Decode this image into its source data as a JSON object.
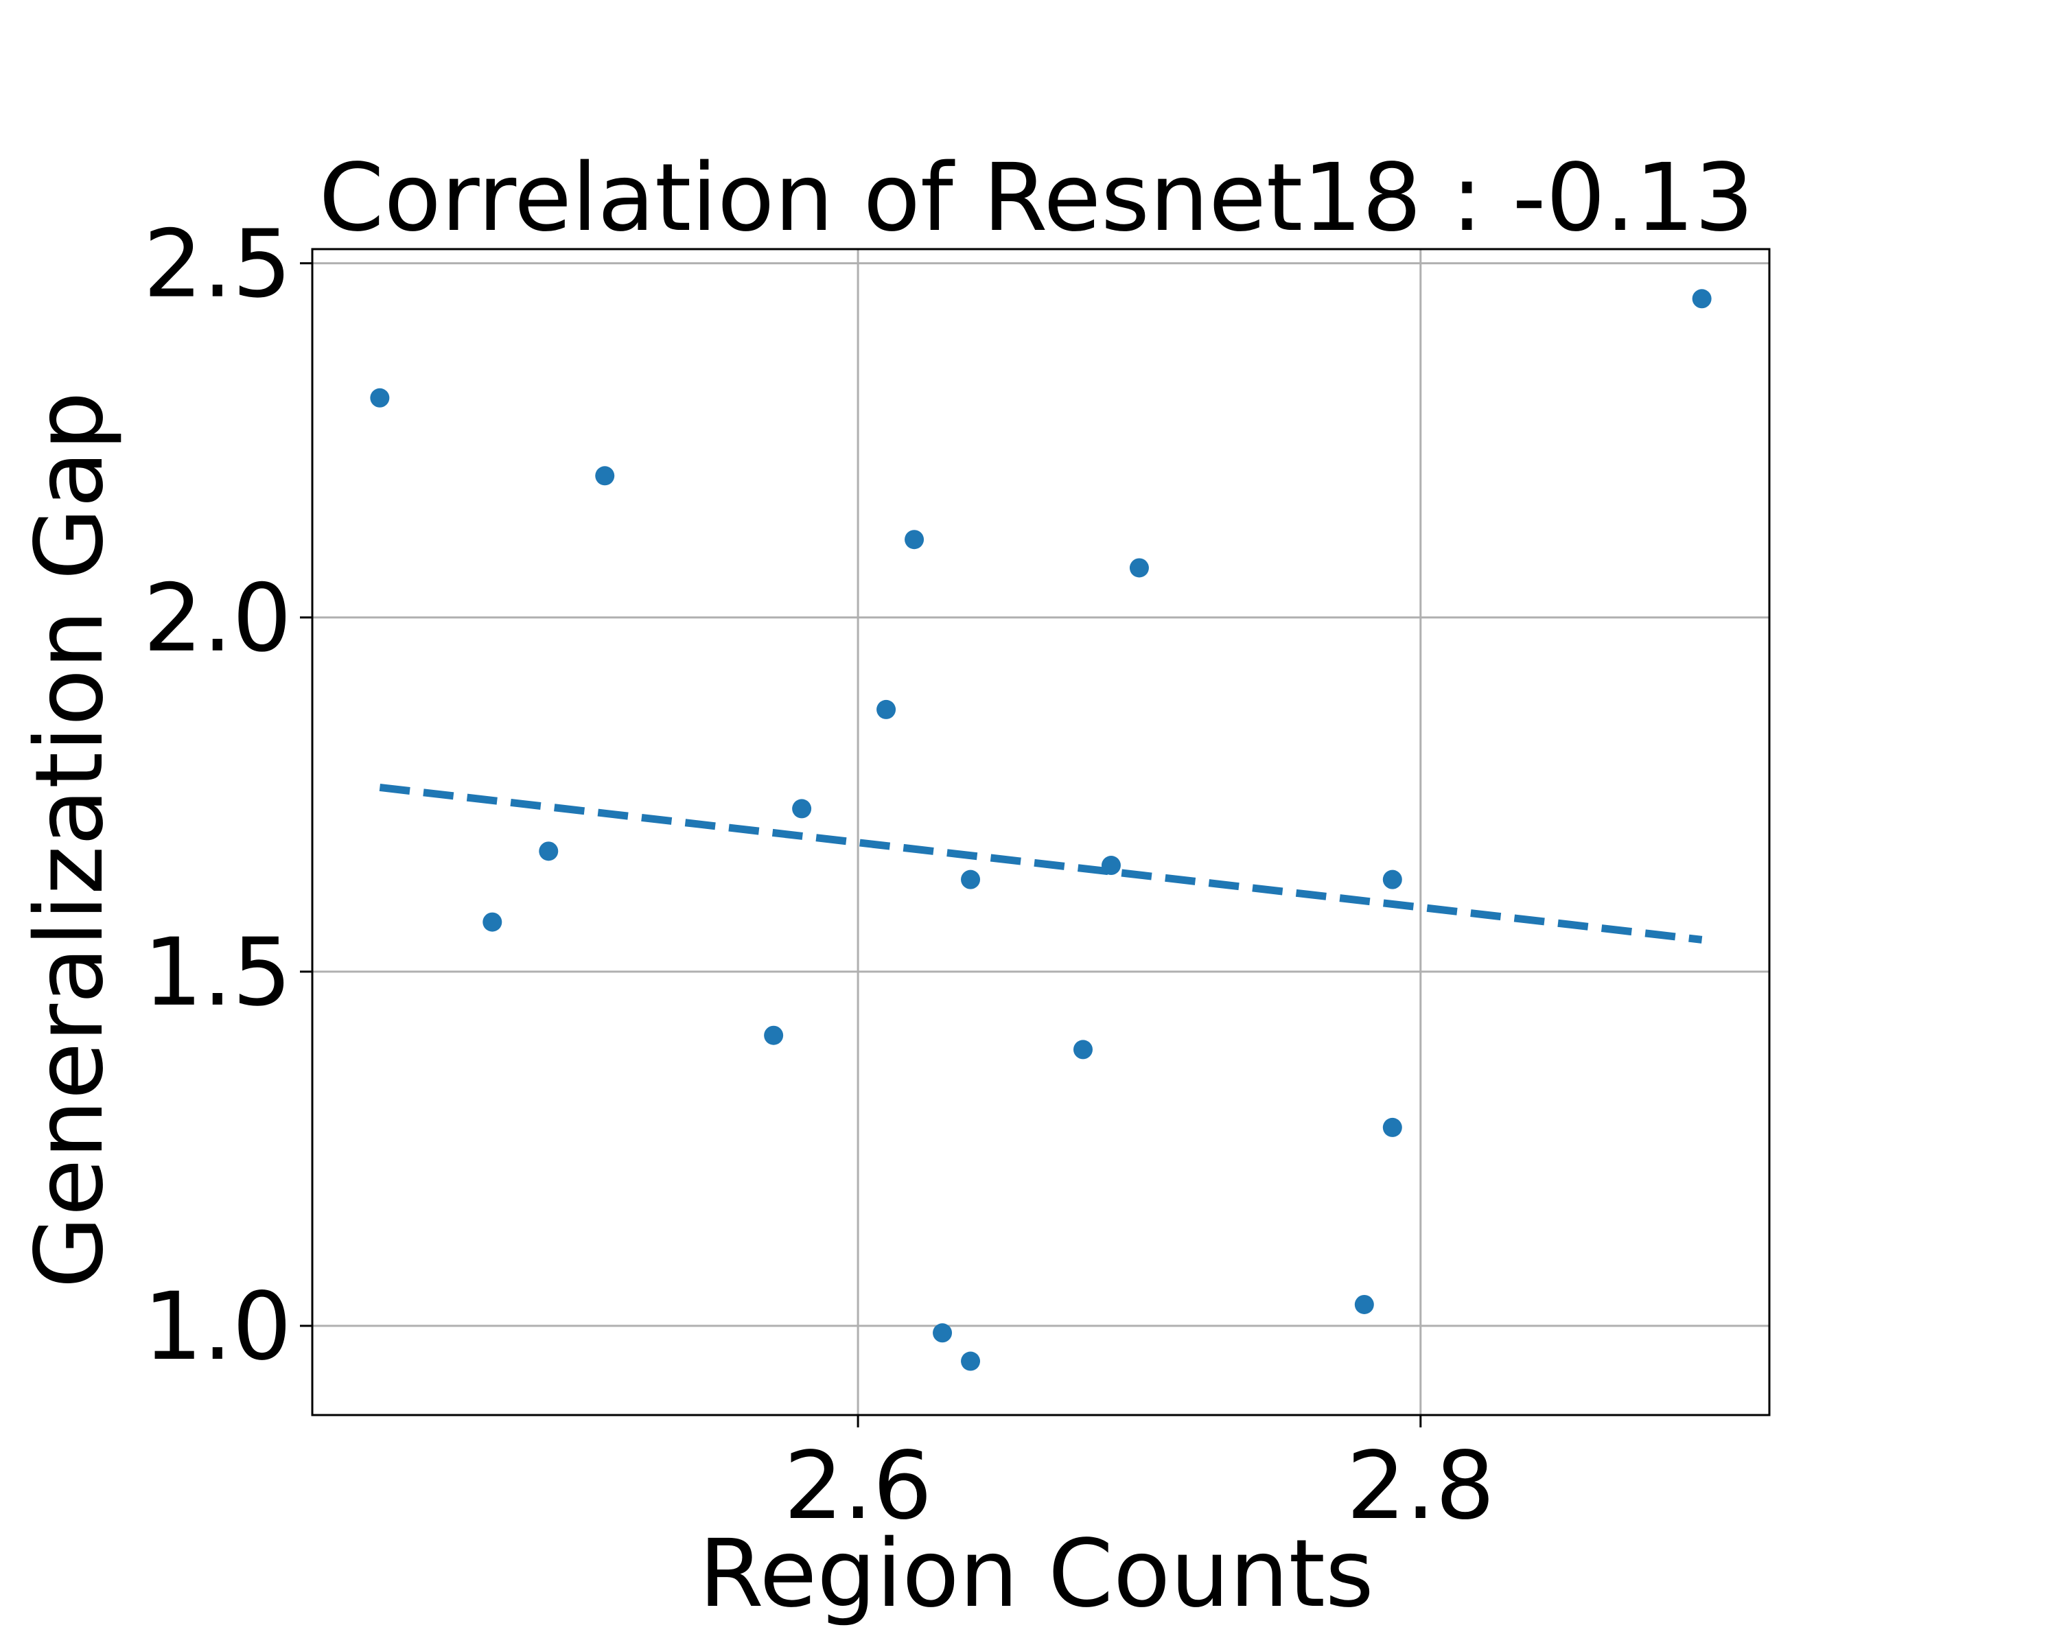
{
  "chart_data": {
    "type": "scatter",
    "title": "Correlation of Resnet18 : -0.13",
    "xlabel": "Region Counts",
    "ylabel": "Generalization Gap",
    "xlim": [
      2.406,
      2.924
    ],
    "ylim": [
      0.874,
      2.52
    ],
    "xticks": [
      2.6,
      2.8
    ],
    "yticks": [
      1.0,
      1.5,
      2.0,
      2.5
    ],
    "xtick_labels": [
      "2.6",
      "2.8"
    ],
    "ytick_labels": [
      "1.0",
      "1.5",
      "2.0",
      "2.5"
    ],
    "grid": true,
    "color": "#1f77b4",
    "points": [
      {
        "x": 2.43,
        "y": 2.31
      },
      {
        "x": 2.47,
        "y": 1.57
      },
      {
        "x": 2.49,
        "y": 1.67
      },
      {
        "x": 2.51,
        "y": 2.2
      },
      {
        "x": 2.57,
        "y": 1.41
      },
      {
        "x": 2.58,
        "y": 1.73
      },
      {
        "x": 2.61,
        "y": 1.87
      },
      {
        "x": 2.62,
        "y": 2.11
      },
      {
        "x": 2.63,
        "y": 0.99
      },
      {
        "x": 2.64,
        "y": 1.63
      },
      {
        "x": 2.64,
        "y": 0.95
      },
      {
        "x": 2.68,
        "y": 1.39
      },
      {
        "x": 2.69,
        "y": 1.65
      },
      {
        "x": 2.7,
        "y": 2.07
      },
      {
        "x": 2.78,
        "y": 1.03
      },
      {
        "x": 2.79,
        "y": 1.63
      },
      {
        "x": 2.79,
        "y": 1.28
      },
      {
        "x": 2.9,
        "y": 2.45
      }
    ],
    "trend_line": {
      "x": [
        2.43,
        2.9
      ],
      "y": [
        1.76,
        1.545
      ],
      "style": "dashed"
    }
  }
}
